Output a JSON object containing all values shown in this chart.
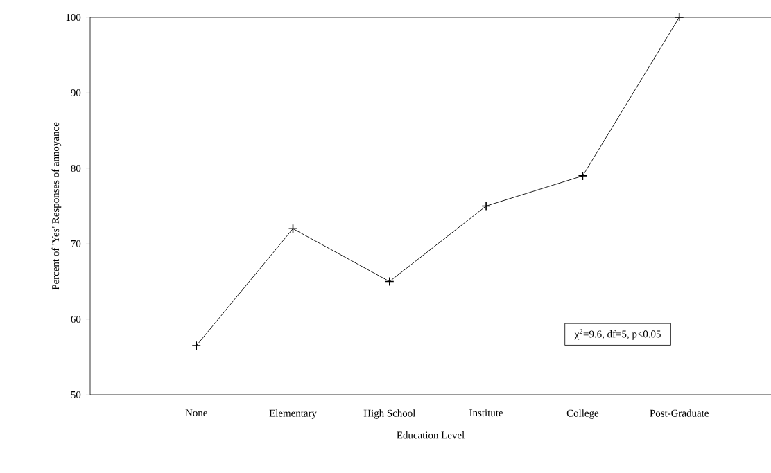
{
  "chart_data": {
    "type": "line",
    "xlabel": "Education Level",
    "ylabel": "Percent of 'Yes' Responses of annoyance",
    "categories": [
      "None",
      "Elementary",
      "High School",
      "Institute",
      "College",
      "Post-Graduate"
    ],
    "values": [
      56.5,
      72,
      65,
      75,
      79,
      100
    ],
    "color": "#000000",
    "marker": "cross",
    "ylim": [
      50,
      100
    ],
    "yticks": [
      50,
      60,
      70,
      80,
      90,
      100
    ],
    "annotations": [
      "χ$^{2}$=9.6, df=5, p<0.05"
    ]
  }
}
